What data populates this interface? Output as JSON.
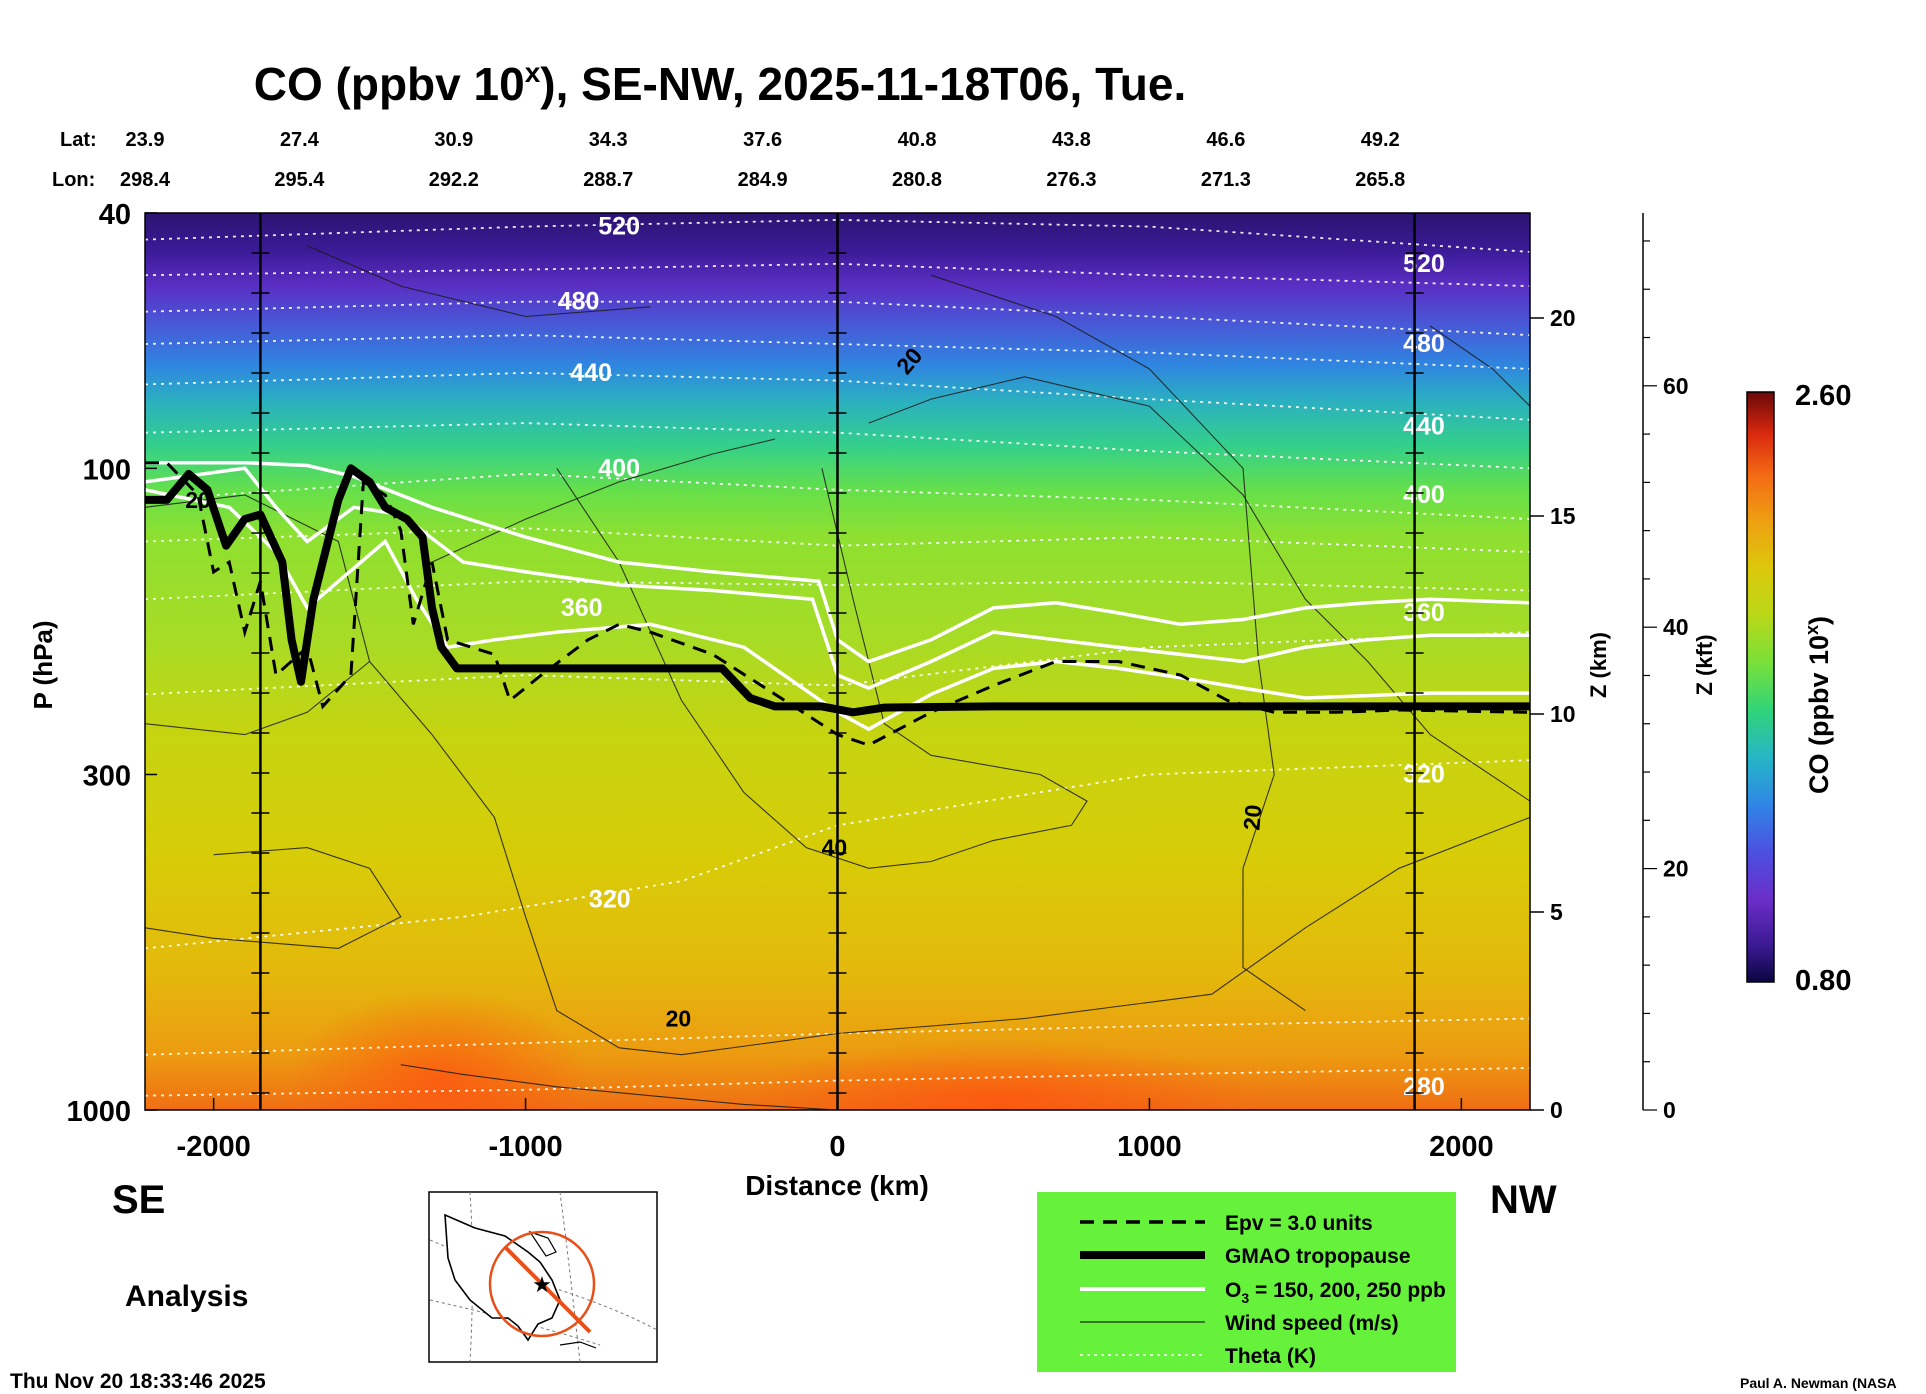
{
  "chart_data": {
    "type": "heatmap",
    "title": "CO (ppbv 10^x), SE-NW, 2025-11-18T06, Tue.",
    "title_parts": {
      "before": "CO (ppbv 10",
      "sup": "x",
      "after": "), SE-NW, 2025-11-18T06, Tue."
    },
    "xlabel": "Distance (km)",
    "ylabel": "P (hPa)",
    "xlim": [
      -2220,
      2220
    ],
    "ylim": [
      1000,
      40
    ],
    "x_ticks": [
      -2000,
      -1000,
      0,
      1000,
      2000
    ],
    "y_ticks": [
      40,
      100,
      300,
      1000
    ],
    "z_km_label": "Z (km)",
    "z_km_ticks": [
      0,
      5,
      10,
      15,
      20
    ],
    "z_kft_label": "Z (kft)",
    "z_kft_ticks": [
      0,
      20,
      40,
      60
    ],
    "lat_label": "Lat:",
    "lon_label": "Lon:",
    "lat_lon": [
      {
        "d": -2220,
        "lat": "23.9",
        "lon": "298.4"
      },
      {
        "d": -1725,
        "lat": "27.4",
        "lon": "295.4"
      },
      {
        "d": -1230,
        "lat": "30.9",
        "lon": "292.2"
      },
      {
        "d": -735,
        "lat": "34.3",
        "lon": "288.7"
      },
      {
        "d": -240,
        "lat": "37.6",
        "lon": "284.9"
      },
      {
        "d": 255,
        "lat": "40.8",
        "lon": "280.8"
      },
      {
        "d": 750,
        "lat": "43.8",
        "lon": "276.3"
      },
      {
        "d": 1245,
        "lat": "46.6",
        "lon": "271.3"
      },
      {
        "d": 1740,
        "lat": "49.2",
        "lon": "265.8"
      }
    ],
    "colorbar": {
      "label": "CO (ppbv 10^x)",
      "label_before": "CO (ppbv 10",
      "label_sup": "x",
      "label_after": ")",
      "min": "0.80",
      "max": "2.60"
    },
    "theta_labels": [
      {
        "text": "520",
        "d": -700,
        "p": 42
      },
      {
        "text": "520",
        "d": 1880,
        "p": 48
      },
      {
        "text": "480",
        "d": -830,
        "p": 55
      },
      {
        "text": "480",
        "d": 1880,
        "p": 64
      },
      {
        "text": "440",
        "d": -790,
        "p": 71
      },
      {
        "text": "440",
        "d": 1880,
        "p": 86
      },
      {
        "text": "400",
        "d": -700,
        "p": 100
      },
      {
        "text": "400",
        "d": 1880,
        "p": 110
      },
      {
        "text": "360",
        "d": -820,
        "p": 165
      },
      {
        "text": "360",
        "d": 1880,
        "p": 168
      },
      {
        "text": "320",
        "d": -730,
        "p": 470
      },
      {
        "text": "320",
        "d": 1880,
        "p": 300
      },
      {
        "text": "280",
        "d": 1880,
        "p": 920
      }
    ],
    "wind_labels": [
      {
        "text": "20",
        "d": -2050,
        "p": 112,
        "rot": 0
      },
      {
        "text": "20",
        "d": 230,
        "p": 68,
        "rot": -50
      },
      {
        "text": "40",
        "d": -10,
        "p": 390,
        "rot": 0
      },
      {
        "text": "20",
        "d": 1330,
        "p": 350,
        "rot": -85
      },
      {
        "text": "20",
        "d": -510,
        "p": 720,
        "rot": 0
      }
    ],
    "legend": {
      "epv": "Epv = 3.0 units",
      "tropopause": "GMAO tropopause",
      "o3_before": "O",
      "o3_sub": "3",
      "o3_after": " = 150, 200, 250 ppb",
      "wind": "Wind speed (m/s)",
      "theta": "Theta (K)"
    },
    "direction_left": "SE",
    "direction_right": "NW"
  },
  "footer": {
    "analysis": "Analysis",
    "timestamp": "Thu Nov 20 18:33:46 2025",
    "credit": "Paul A. Newman (NASA"
  },
  "colors": {
    "legend_bg": "#66f23a",
    "map_marker": "#e8501a"
  }
}
